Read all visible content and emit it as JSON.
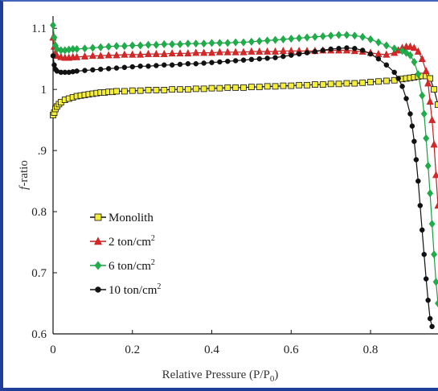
{
  "chart_data": {
    "type": "line",
    "xlabel": "Relative Pressure (P/P",
    "xlabel_sub": "0",
    "xlabel_end": ")",
    "ylabel_italic": "f",
    "ylabel_rest": "-ratio",
    "xlim": [
      0,
      0.97
    ],
    "ylim": [
      0.6,
      1.12
    ],
    "x_ticks": [
      0,
      0.2,
      0.4,
      0.6,
      0.8
    ],
    "x_tick_labels": [
      "0",
      "0.2",
      "0.4",
      "0.6",
      "0.8"
    ],
    "y_ticks": [
      0.6,
      0.7,
      0.8,
      0.9,
      1.0,
      1.1
    ],
    "y_tick_labels": [
      "0.6",
      "0.7",
      "0.8",
      ".9",
      "1",
      "1.1"
    ],
    "grid": false,
    "legend_position": "left",
    "series": [
      {
        "name": "Monolith",
        "sup": "",
        "marker": "square",
        "color": "#111111",
        "fill": "#f5ef3a",
        "x": [
          0,
          0.003,
          0.006,
          0.01,
          0.015,
          0.02,
          0.03,
          0.04,
          0.05,
          0.06,
          0.07,
          0.08,
          0.09,
          0.1,
          0.11,
          0.12,
          0.13,
          0.14,
          0.15,
          0.16,
          0.18,
          0.2,
          0.22,
          0.24,
          0.26,
          0.28,
          0.3,
          0.32,
          0.34,
          0.36,
          0.38,
          0.4,
          0.42,
          0.44,
          0.46,
          0.48,
          0.5,
          0.52,
          0.54,
          0.56,
          0.58,
          0.6,
          0.62,
          0.64,
          0.66,
          0.68,
          0.7,
          0.72,
          0.74,
          0.76,
          0.78,
          0.8,
          0.82,
          0.84,
          0.86,
          0.88,
          0.89,
          0.9,
          0.91,
          0.92,
          0.93,
          0.94,
          0.95,
          0.96,
          0.97
        ],
        "y": [
          0.958,
          0.962,
          0.968,
          0.972,
          0.976,
          0.979,
          0.983,
          0.985,
          0.987,
          0.989,
          0.99,
          0.991,
          0.992,
          0.993,
          0.994,
          0.995,
          0.995,
          0.996,
          0.996,
          0.997,
          0.997,
          0.998,
          0.998,
          0.999,
          0.999,
          0.999,
          1.0,
          1.0,
          1.0,
          1.001,
          1.001,
          1.002,
          1.002,
          1.003,
          1.003,
          1.003,
          1.004,
          1.004,
          1.005,
          1.005,
          1.006,
          1.006,
          1.007,
          1.007,
          1.008,
          1.008,
          1.009,
          1.009,
          1.01,
          1.01,
          1.011,
          1.012,
          1.013,
          1.014,
          1.015,
          1.017,
          1.018,
          1.019,
          1.02,
          1.021,
          1.022,
          1.022,
          1.018,
          1.0,
          0.975
        ]
      },
      {
        "name": "2 ton/cm",
        "sup": "2",
        "marker": "triangle",
        "color": "#c41e1e",
        "fill": "#d62828",
        "x": [
          0,
          0.003,
          0.006,
          0.01,
          0.02,
          0.03,
          0.04,
          0.05,
          0.06,
          0.08,
          0.1,
          0.12,
          0.14,
          0.16,
          0.18,
          0.2,
          0.22,
          0.24,
          0.26,
          0.28,
          0.3,
          0.32,
          0.34,
          0.36,
          0.38,
          0.4,
          0.42,
          0.44,
          0.46,
          0.48,
          0.5,
          0.52,
          0.54,
          0.56,
          0.58,
          0.6,
          0.62,
          0.64,
          0.66,
          0.68,
          0.7,
          0.72,
          0.74,
          0.76,
          0.78,
          0.8,
          0.82,
          0.84,
          0.86,
          0.87,
          0.88,
          0.89,
          0.9,
          0.91,
          0.92,
          0.93,
          0.94,
          0.945,
          0.95,
          0.955,
          0.96,
          0.965,
          0.97
        ],
        "y": [
          1.085,
          1.07,
          1.06,
          1.055,
          1.053,
          1.052,
          1.052,
          1.053,
          1.053,
          1.054,
          1.055,
          1.055,
          1.056,
          1.056,
          1.057,
          1.057,
          1.057,
          1.058,
          1.058,
          1.058,
          1.059,
          1.059,
          1.059,
          1.06,
          1.06,
          1.06,
          1.061,
          1.061,
          1.061,
          1.061,
          1.062,
          1.062,
          1.062,
          1.062,
          1.063,
          1.063,
          1.063,
          1.063,
          1.063,
          1.064,
          1.064,
          1.064,
          1.064,
          1.063,
          1.062,
          1.06,
          1.058,
          1.057,
          1.06,
          1.064,
          1.068,
          1.07,
          1.07,
          1.068,
          1.062,
          1.05,
          1.03,
          1.01,
          0.98,
          0.95,
          0.91,
          0.86,
          0.81
        ]
      },
      {
        "name": "6 ton/cm",
        "sup": "2",
        "marker": "diamond",
        "color": "#17a03f",
        "fill": "#1fae4a",
        "x": [
          0,
          0.003,
          0.006,
          0.01,
          0.02,
          0.03,
          0.04,
          0.05,
          0.06,
          0.08,
          0.1,
          0.12,
          0.14,
          0.16,
          0.18,
          0.2,
          0.22,
          0.24,
          0.26,
          0.28,
          0.3,
          0.32,
          0.34,
          0.36,
          0.38,
          0.4,
          0.42,
          0.44,
          0.46,
          0.48,
          0.5,
          0.52,
          0.54,
          0.56,
          0.58,
          0.6,
          0.62,
          0.64,
          0.66,
          0.68,
          0.7,
          0.72,
          0.74,
          0.76,
          0.78,
          0.8,
          0.82,
          0.84,
          0.86,
          0.88,
          0.89,
          0.9,
          0.91,
          0.92,
          0.93,
          0.935,
          0.94,
          0.945,
          0.95,
          0.955,
          0.96,
          0.965,
          0.97
        ],
        "y": [
          1.105,
          1.085,
          1.072,
          1.066,
          1.064,
          1.064,
          1.065,
          1.066,
          1.066,
          1.067,
          1.068,
          1.069,
          1.07,
          1.071,
          1.071,
          1.072,
          1.072,
          1.073,
          1.073,
          1.074,
          1.074,
          1.074,
          1.075,
          1.075,
          1.075,
          1.076,
          1.076,
          1.076,
          1.077,
          1.077,
          1.078,
          1.079,
          1.08,
          1.081,
          1.082,
          1.083,
          1.084,
          1.085,
          1.086,
          1.087,
          1.088,
          1.089,
          1.089,
          1.088,
          1.086,
          1.082,
          1.077,
          1.072,
          1.067,
          1.063,
          1.06,
          1.056,
          1.045,
          1.025,
          0.99,
          0.96,
          0.92,
          0.875,
          0.83,
          0.78,
          0.73,
          0.685,
          0.65
        ]
      },
      {
        "name": "10 ton/cm",
        "sup": "2",
        "marker": "circle",
        "color": "#111111",
        "fill": "#111111",
        "x": [
          0,
          0.003,
          0.006,
          0.01,
          0.02,
          0.03,
          0.04,
          0.05,
          0.06,
          0.08,
          0.1,
          0.12,
          0.14,
          0.16,
          0.18,
          0.2,
          0.22,
          0.24,
          0.26,
          0.28,
          0.3,
          0.32,
          0.34,
          0.36,
          0.38,
          0.4,
          0.42,
          0.44,
          0.46,
          0.48,
          0.5,
          0.52,
          0.54,
          0.56,
          0.58,
          0.6,
          0.62,
          0.64,
          0.66,
          0.68,
          0.7,
          0.72,
          0.74,
          0.76,
          0.78,
          0.8,
          0.82,
          0.84,
          0.86,
          0.87,
          0.88,
          0.89,
          0.9,
          0.905,
          0.91,
          0.915,
          0.92,
          0.925,
          0.93,
          0.935,
          0.94,
          0.945,
          0.95,
          0.955
        ],
        "y": [
          1.055,
          1.04,
          1.033,
          1.03,
          1.028,
          1.028,
          1.028,
          1.029,
          1.03,
          1.031,
          1.032,
          1.033,
          1.034,
          1.035,
          1.036,
          1.037,
          1.038,
          1.038,
          1.039,
          1.04,
          1.04,
          1.041,
          1.042,
          1.042,
          1.043,
          1.044,
          1.045,
          1.046,
          1.047,
          1.048,
          1.049,
          1.05,
          1.051,
          1.052,
          1.054,
          1.056,
          1.058,
          1.06,
          1.062,
          1.064,
          1.066,
          1.067,
          1.068,
          1.067,
          1.064,
          1.058,
          1.05,
          1.04,
          1.028,
          1.018,
          1.005,
          0.985,
          0.96,
          0.94,
          0.915,
          0.885,
          0.85,
          0.81,
          0.77,
          0.73,
          0.69,
          0.655,
          0.625,
          0.612
        ]
      }
    ]
  }
}
